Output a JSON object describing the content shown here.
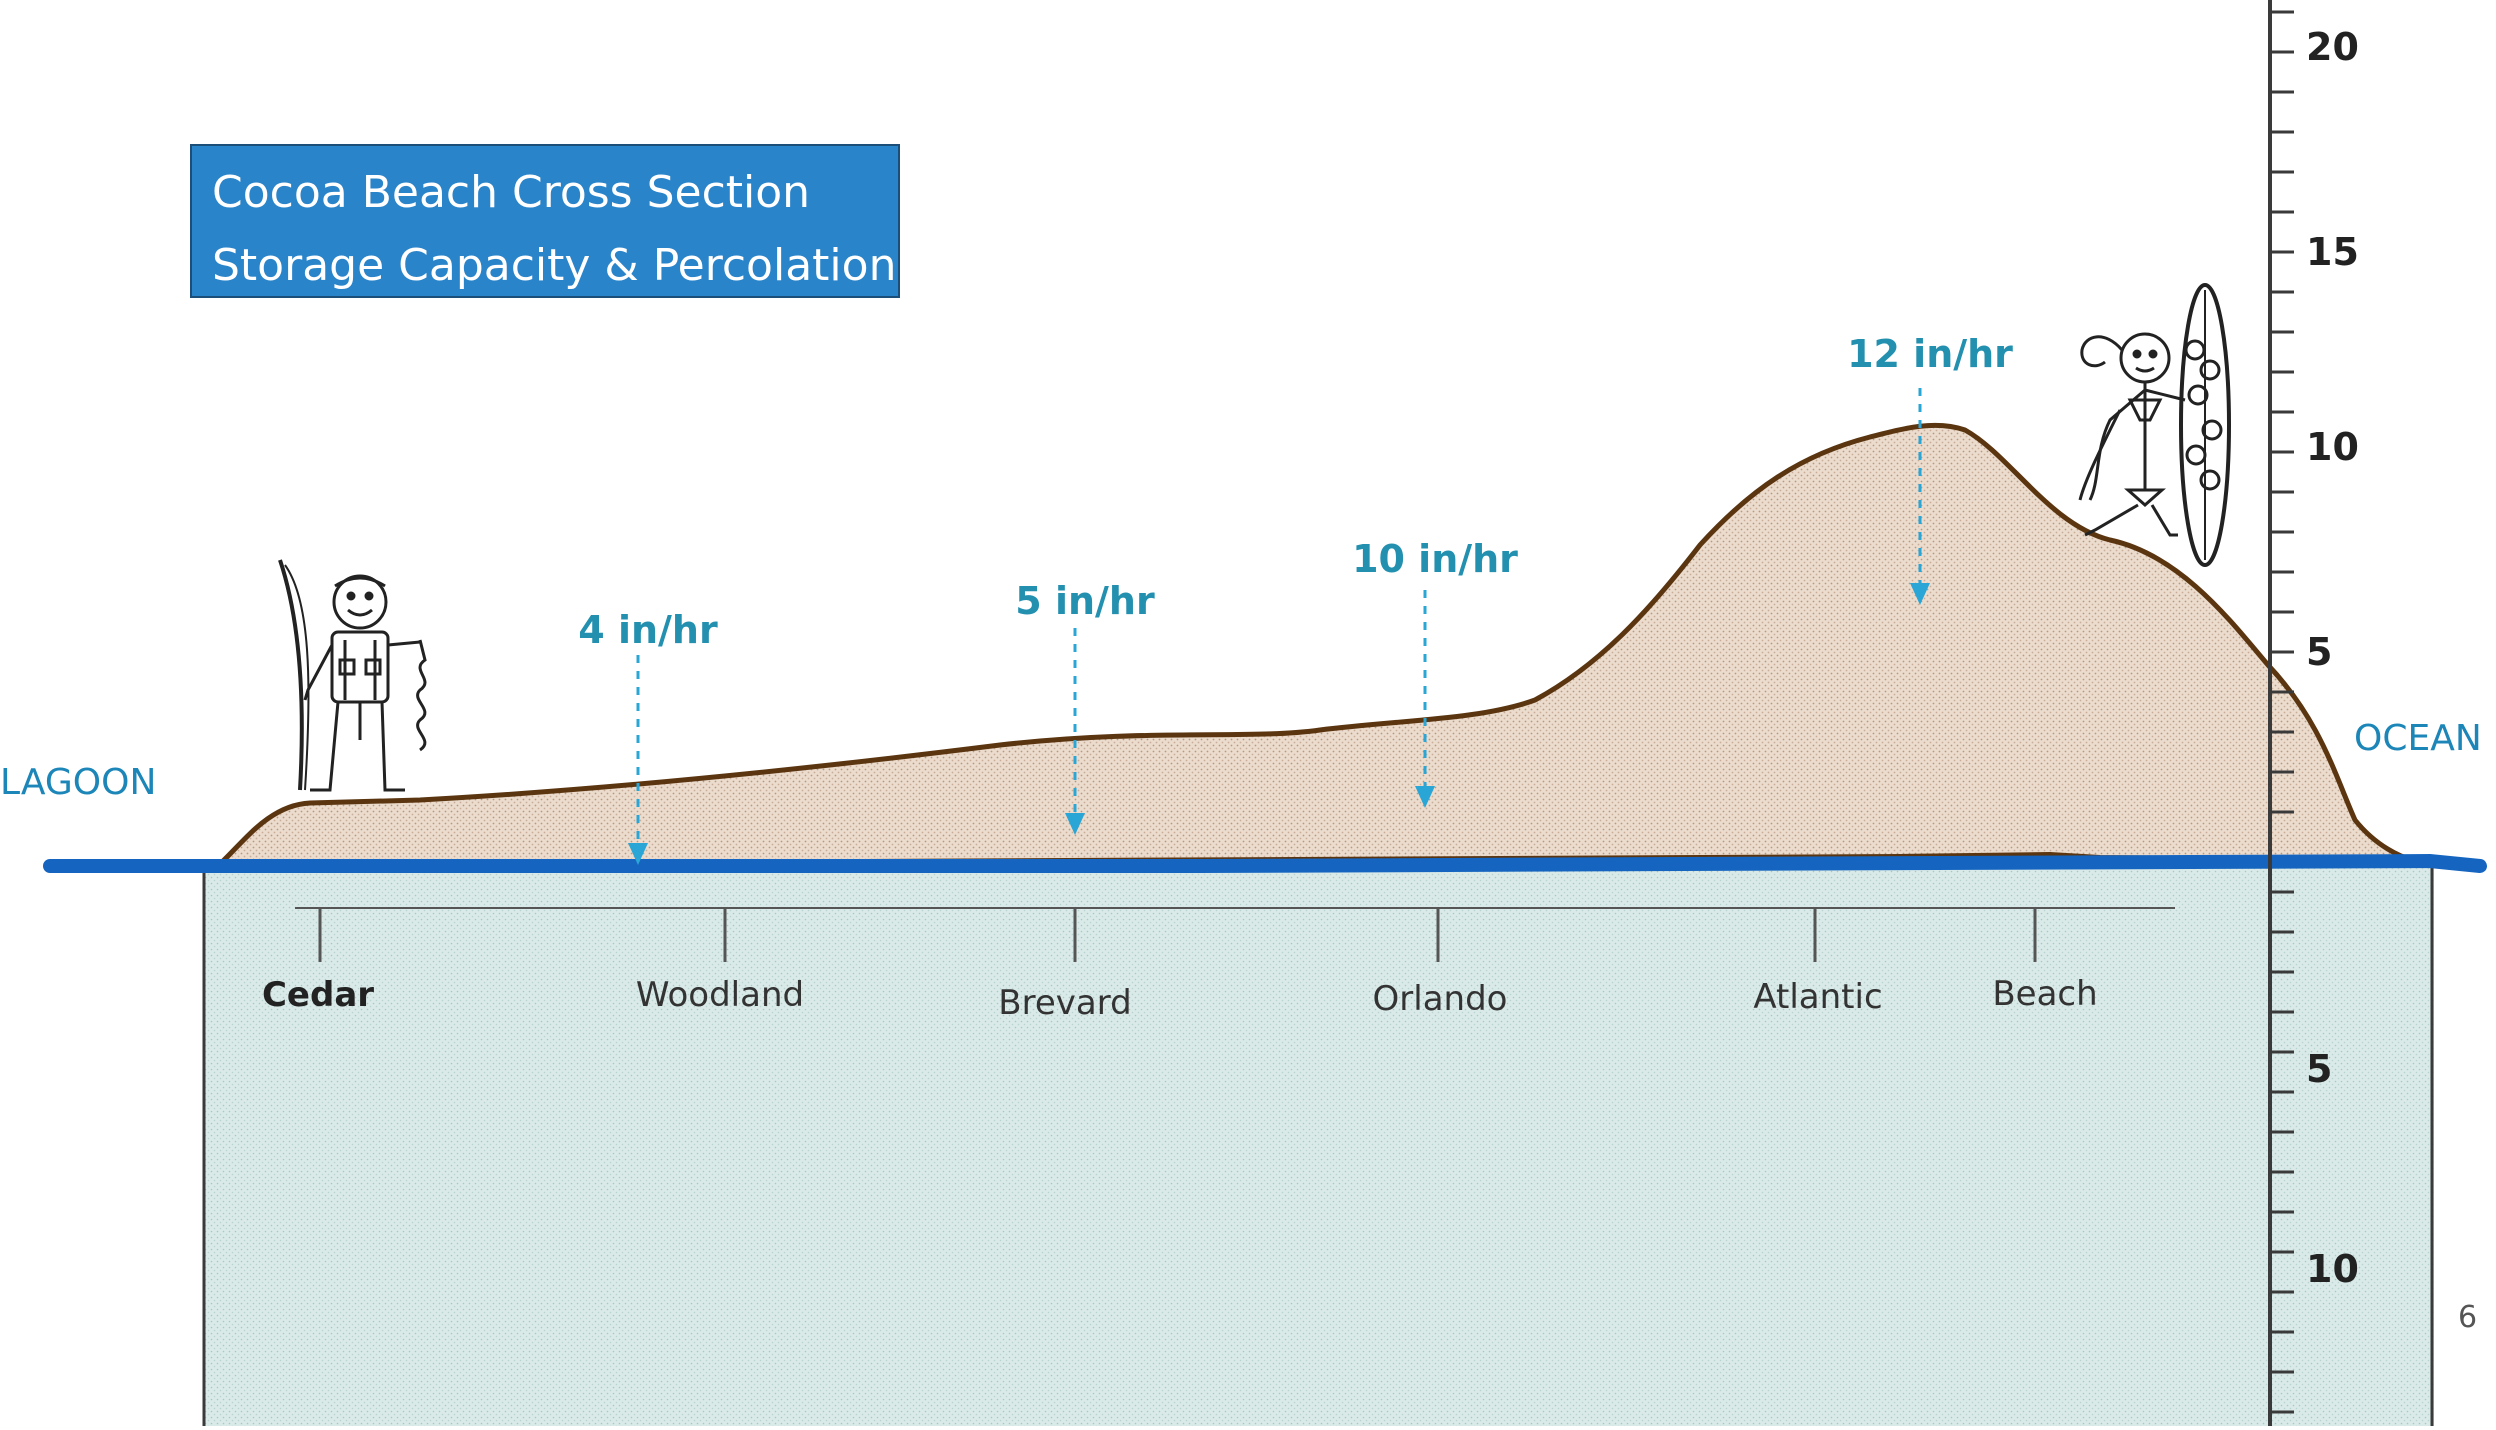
{
  "diagram": {
    "title_lines": [
      "Cocoa Beach Cross Section",
      "Storage Capacity & Percolation"
    ],
    "left_label": "LAGOON",
    "right_label": "OCEAN",
    "page_number": "6",
    "scale_upper_labels": [
      "20",
      "15",
      "10",
      "5"
    ],
    "scale_lower_labels": [
      "5",
      "10"
    ],
    "streets": [
      "Cedar",
      "Woodland",
      "Brevard",
      "Orlando",
      "Atlantic",
      "Beach"
    ],
    "percolation_rates": [
      "4 in/hr",
      "5 in/hr",
      "10 in/hr",
      "12 in/hr"
    ],
    "colors": {
      "title_bg": "#2a84c9",
      "water_line": "#1565c0",
      "groundwater": "#d7e8e6",
      "sand": "#ecdccd",
      "ground_outline": "#5a3510",
      "rate_text": "#2390b0",
      "arrow": "#2aa6d6"
    },
    "figures": [
      "fisherman-figure",
      "surfer-figure"
    ]
  }
}
